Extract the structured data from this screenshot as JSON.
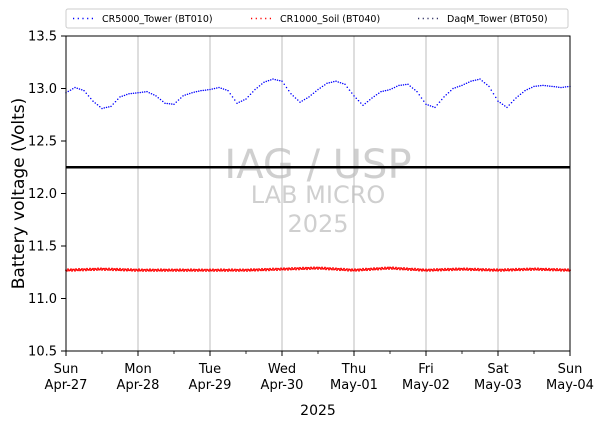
{
  "chart_data": {
    "type": "scatter",
    "title": "",
    "ylabel": "Battery voltage (Volts)",
    "xlabel": "2025",
    "ylim": [
      10.5,
      13.5
    ],
    "yticks": [
      10.5,
      11.0,
      11.5,
      12.0,
      12.5,
      13.0,
      13.5
    ],
    "ytick_labels": [
      "10.5",
      "11.0",
      "11.5",
      "12.0",
      "12.5",
      "13.0",
      "13.5"
    ],
    "xlim": [
      "2025-04-27",
      "2025-05-04"
    ],
    "xticks": [
      {
        "date": "2025-04-27",
        "line1": "Sun",
        "line2": "Apr-27"
      },
      {
        "date": "2025-04-28",
        "line1": "Mon",
        "line2": "Apr-28"
      },
      {
        "date": "2025-04-29",
        "line1": "Tue",
        "line2": "Apr-29"
      },
      {
        "date": "2025-04-30",
        "line1": "Wed",
        "line2": "Apr-30"
      },
      {
        "date": "2025-05-01",
        "line1": "Thu",
        "line2": "May-01"
      },
      {
        "date": "2025-05-02",
        "line1": "Fri",
        "line2": "May-02"
      },
      {
        "date": "2025-05-03",
        "line1": "Sat",
        "line2": "May-03"
      },
      {
        "date": "2025-05-04",
        "line1": "Sun",
        "line2": "May-04"
      }
    ],
    "grid": "vertical",
    "legend_position": "top",
    "reference_line": {
      "y": 12.25,
      "color": "#000000"
    },
    "series": [
      {
        "name": "CR5000_Tower (BT010)",
        "color": "#0000ff",
        "x": [
          "2025-04-27 00:00",
          "2025-04-27 03:00",
          "2025-04-27 06:00",
          "2025-04-27 09:00",
          "2025-04-27 12:00",
          "2025-04-27 15:00",
          "2025-04-27 18:00",
          "2025-04-27 21:00",
          "2025-04-28 00:00",
          "2025-04-28 03:00",
          "2025-04-28 06:00",
          "2025-04-28 09:00",
          "2025-04-28 12:00",
          "2025-04-28 15:00",
          "2025-04-28 18:00",
          "2025-04-28 21:00",
          "2025-04-29 00:00",
          "2025-04-29 03:00",
          "2025-04-29 06:00",
          "2025-04-29 09:00",
          "2025-04-29 12:00",
          "2025-04-29 15:00",
          "2025-04-29 18:00",
          "2025-04-29 21:00",
          "2025-04-30 00:00",
          "2025-04-30 03:00",
          "2025-04-30 06:00",
          "2025-04-30 09:00",
          "2025-04-30 12:00",
          "2025-04-30 15:00",
          "2025-04-30 18:00",
          "2025-04-30 21:00",
          "2025-05-01 00:00",
          "2025-05-01 03:00",
          "2025-05-01 06:00",
          "2025-05-01 09:00",
          "2025-05-01 12:00",
          "2025-05-01 15:00",
          "2025-05-01 18:00",
          "2025-05-01 21:00",
          "2025-05-02 00:00",
          "2025-05-02 03:00",
          "2025-05-02 06:00",
          "2025-05-02 09:00",
          "2025-05-02 12:00",
          "2025-05-02 15:00",
          "2025-05-02 18:00",
          "2025-05-02 21:00",
          "2025-05-03 00:00",
          "2025-05-03 03:00",
          "2025-05-03 06:00",
          "2025-05-03 09:00",
          "2025-05-03 12:00",
          "2025-05-03 15:00",
          "2025-05-03 18:00",
          "2025-05-03 21:00",
          "2025-05-04 00:00"
        ],
        "y": [
          12.96,
          13.01,
          12.98,
          12.88,
          12.81,
          12.83,
          12.92,
          12.95,
          12.96,
          12.97,
          12.93,
          12.86,
          12.85,
          12.93,
          12.96,
          12.98,
          12.99,
          13.01,
          12.98,
          12.86,
          12.9,
          12.99,
          13.06,
          13.09,
          13.07,
          12.95,
          12.87,
          12.92,
          12.99,
          13.05,
          13.07,
          13.04,
          12.93,
          12.84,
          12.91,
          12.97,
          12.99,
          13.03,
          13.04,
          12.97,
          12.85,
          12.82,
          12.92,
          13.0,
          13.03,
          13.07,
          13.09,
          13.02,
          12.88,
          12.82,
          12.91,
          12.98,
          13.02,
          13.03,
          13.02,
          13.01,
          13.02
        ]
      },
      {
        "name": "CR1000_Soil (BT040)",
        "color": "#ff0000",
        "x": [
          "2025-04-27 00:00",
          "2025-04-27 12:00",
          "2025-04-28 00:00",
          "2025-04-28 12:00",
          "2025-04-29 00:00",
          "2025-04-29 12:00",
          "2025-04-30 00:00",
          "2025-04-30 12:00",
          "2025-05-01 00:00",
          "2025-05-01 12:00",
          "2025-05-02 00:00",
          "2025-05-02 12:00",
          "2025-05-03 00:00",
          "2025-05-03 12:00",
          "2025-05-04 00:00"
        ],
        "y": [
          11.27,
          11.28,
          11.27,
          11.27,
          11.27,
          11.27,
          11.28,
          11.29,
          11.27,
          11.29,
          11.27,
          11.28,
          11.27,
          11.28,
          11.27
        ]
      },
      {
        "name": "DaqM_Tower (BT050)",
        "color": "#333366",
        "x": [],
        "y": []
      }
    ],
    "watermark": [
      "IAG / USP",
      "LAB MICRO",
      "2025"
    ]
  }
}
